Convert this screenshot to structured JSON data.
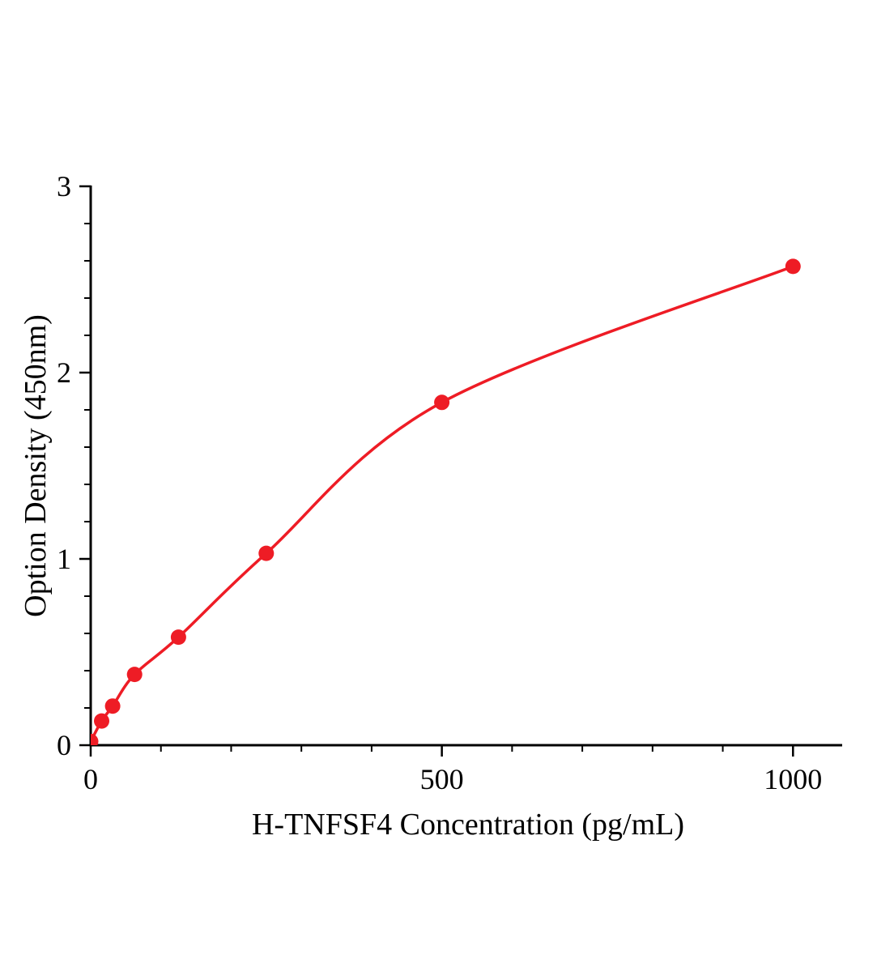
{
  "chart_data": {
    "type": "scatter",
    "title": "",
    "xlabel": "H-TNFSF4 Concentration (pg/mL)",
    "ylabel": "Option Density (450nm)",
    "x": [
      0,
      15.6,
      31.2,
      62.5,
      125,
      250,
      500,
      1000
    ],
    "y": [
      0.02,
      0.13,
      0.21,
      0.38,
      0.58,
      1.03,
      1.84,
      2.57
    ],
    "curve_style": "smooth-fit-through-points",
    "xlim": [
      0,
      1070
    ],
    "ylim": [
      0,
      3
    ],
    "x_major_ticks": [
      0,
      500,
      1000
    ],
    "x_minor_step": 100,
    "y_major_ticks": [
      0,
      1,
      2,
      3
    ],
    "y_minor_step": 0.2,
    "grid": false,
    "legend": null,
    "colors": {
      "line": "#ee1c25",
      "marker": "#ee1c25",
      "axis": "#000000",
      "text": "#000000"
    }
  }
}
